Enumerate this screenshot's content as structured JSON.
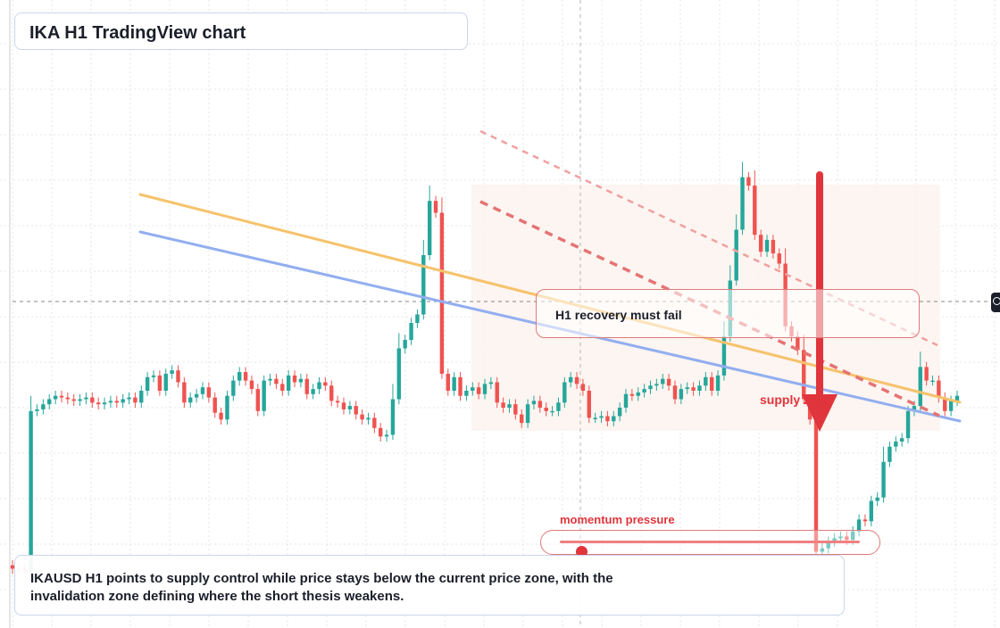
{
  "title": "IKA H1 TradingView chart",
  "annotations": {
    "recovery": "H1 recovery must fail",
    "supply": "supply zone",
    "momentum_label": "momentum pressure",
    "momentum_level": 0.07
  },
  "summary": "IKAUSD H1 points to supply control while price stays below the current price zone, with the invalidation zone defining where the short thesis weakens.",
  "colors": {
    "up": "#26a69a",
    "down": "#ef5350",
    "ma_fast": "#f6c26b",
    "ma_slow": "#92aef0",
    "trend": "#e57373",
    "arrow": "#e0353c",
    "zone": "#fdf1ea"
  },
  "chart_data": {
    "type": "candlestick",
    "y_range": [
      0.7,
      2.7
    ],
    "x_range": [
      0,
      150
    ],
    "grid": true,
    "closes": [
      0.95,
      0.95,
      0.93,
      1.88,
      1.89,
      1.92,
      1.95,
      1.97,
      1.96,
      1.95,
      1.94,
      1.95,
      1.96,
      1.93,
      1.92,
      1.93,
      1.94,
      1.93,
      1.95,
      1.96,
      1.93,
      2.0,
      2.08,
      2.09,
      2.0,
      2.1,
      2.12,
      2.05,
      1.93,
      1.96,
      1.98,
      2.02,
      1.96,
      1.87,
      1.83,
      1.97,
      2.06,
      2.11,
      2.06,
      2.01,
      1.88,
      2.06,
      2.07,
      2.04,
      2.0,
      2.09,
      2.05,
      2.07,
      1.98,
      2.01,
      2.05,
      2.03,
      1.94,
      1.93,
      1.89,
      1.91,
      1.86,
      1.83,
      1.84,
      1.78,
      1.73,
      1.74,
      1.95,
      2.25,
      2.3,
      2.4,
      2.45,
      2.8,
      3.12,
      3.05,
      2.1,
      2.0,
      2.08,
      1.97,
      2.0,
      2.02,
      1.98,
      2.04,
      2.05,
      1.93,
      1.9,
      1.92,
      1.86,
      1.81,
      1.92,
      1.94,
      1.9,
      1.88,
      1.88,
      1.93,
      2.05,
      2.08,
      2.04,
      2.0,
      1.84,
      1.84,
      1.85,
      1.82,
      1.85,
      1.9,
      1.98,
      1.97,
      1.99,
      2.01,
      2.03,
      2.04,
      2.07,
      2.03,
      1.95,
      2.01,
      2.02,
      2.0,
      2.03,
      2.08,
      2.0,
      2.09,
      2.32,
      2.65,
      2.95,
      3.26,
      3.21,
      2.92,
      2.82,
      2.89,
      2.81,
      2.75,
      2.38,
      2.32,
      2.24,
      1.95,
      1.83,
      1.05,
      1.07,
      1.11,
      1.13,
      1.14,
      1.12,
      1.17,
      1.24,
      1.23,
      1.35,
      1.37,
      1.58,
      1.67,
      1.7,
      1.72,
      1.88,
      1.91,
      2.14,
      2.06,
      2.06,
      1.96,
      1.88,
      1.94,
      1.97
    ],
    "ma_fast": [
      [
        0.15,
        2.14
      ],
      [
        1.07,
        1.84
      ]
    ],
    "ma_slow": [
      [
        0.15,
        2.0
      ],
      [
        1.07,
        1.7
      ]
    ]
  }
}
